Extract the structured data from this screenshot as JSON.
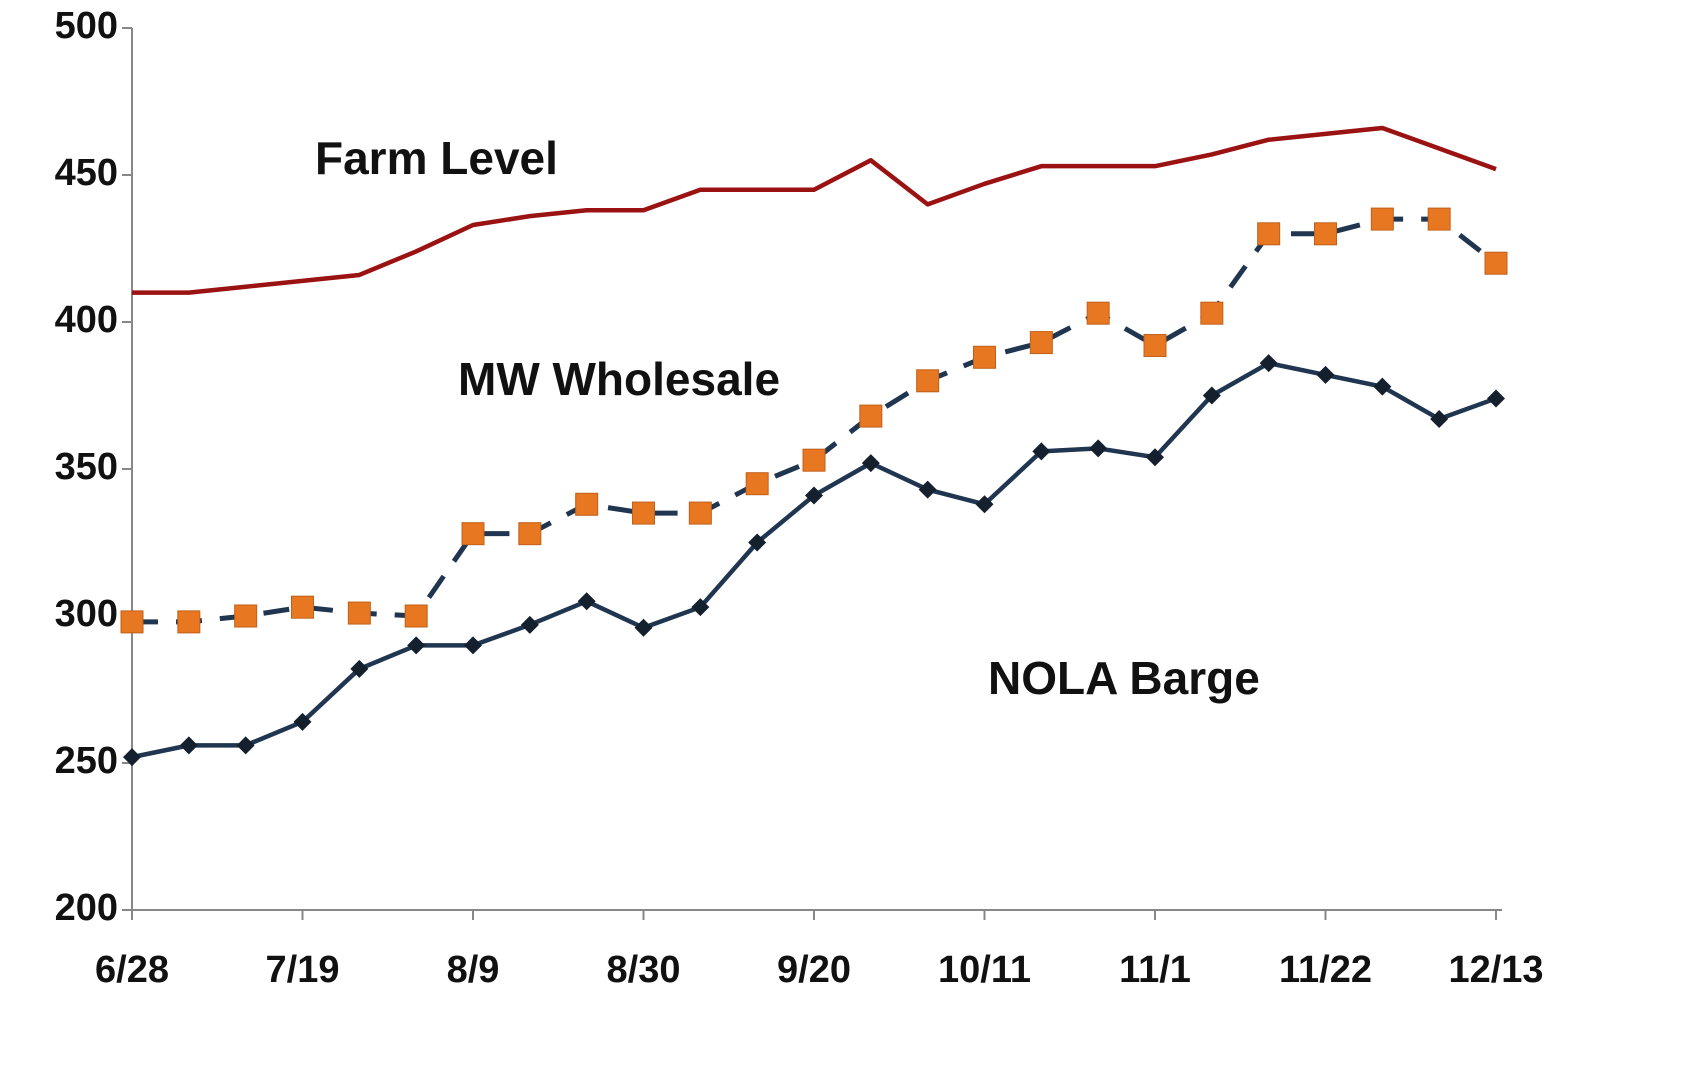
{
  "chart_data": {
    "type": "line",
    "categories": [
      "6/28",
      null,
      null,
      "7/19",
      null,
      null,
      "8/9",
      null,
      null,
      "8/30",
      null,
      null,
      "9/20",
      null,
      null,
      "10/11",
      null,
      null,
      "11/1",
      null,
      null,
      "11/22",
      null,
      null,
      "12/13"
    ],
    "series": [
      {
        "name": "Farm Level",
        "color": "#9b1212",
        "marker": "none",
        "dashed": false,
        "values": [
          410,
          410,
          412,
          414,
          416,
          424,
          433,
          436,
          438,
          438,
          445,
          445,
          445,
          455,
          440,
          447,
          453,
          453,
          453,
          457,
          462,
          464,
          466,
          459,
          452
        ]
      },
      {
        "name": "MW Wholesale",
        "color": "#1f3550",
        "marker": "square",
        "marker_color": "#e87722",
        "dashed": true,
        "values": [
          298,
          298,
          300,
          303,
          301,
          300,
          328,
          328,
          338,
          335,
          335,
          345,
          353,
          368,
          380,
          388,
          393,
          403,
          392,
          403,
          430,
          430,
          435,
          435,
          420
        ]
      },
      {
        "name": "NOLA Barge",
        "color": "#1f3550",
        "marker": "diamond",
        "marker_color": "#14202e",
        "dashed": false,
        "values": [
          252,
          256,
          256,
          264,
          282,
          290,
          290,
          297,
          305,
          296,
          303,
          325,
          341,
          352,
          343,
          338,
          356,
          357,
          354,
          375,
          386,
          382,
          378,
          367,
          374
        ]
      }
    ],
    "ylim": [
      200,
      500
    ],
    "yticks": [
      200,
      250,
      300,
      350,
      400,
      450,
      500
    ],
    "grid": false
  }
}
